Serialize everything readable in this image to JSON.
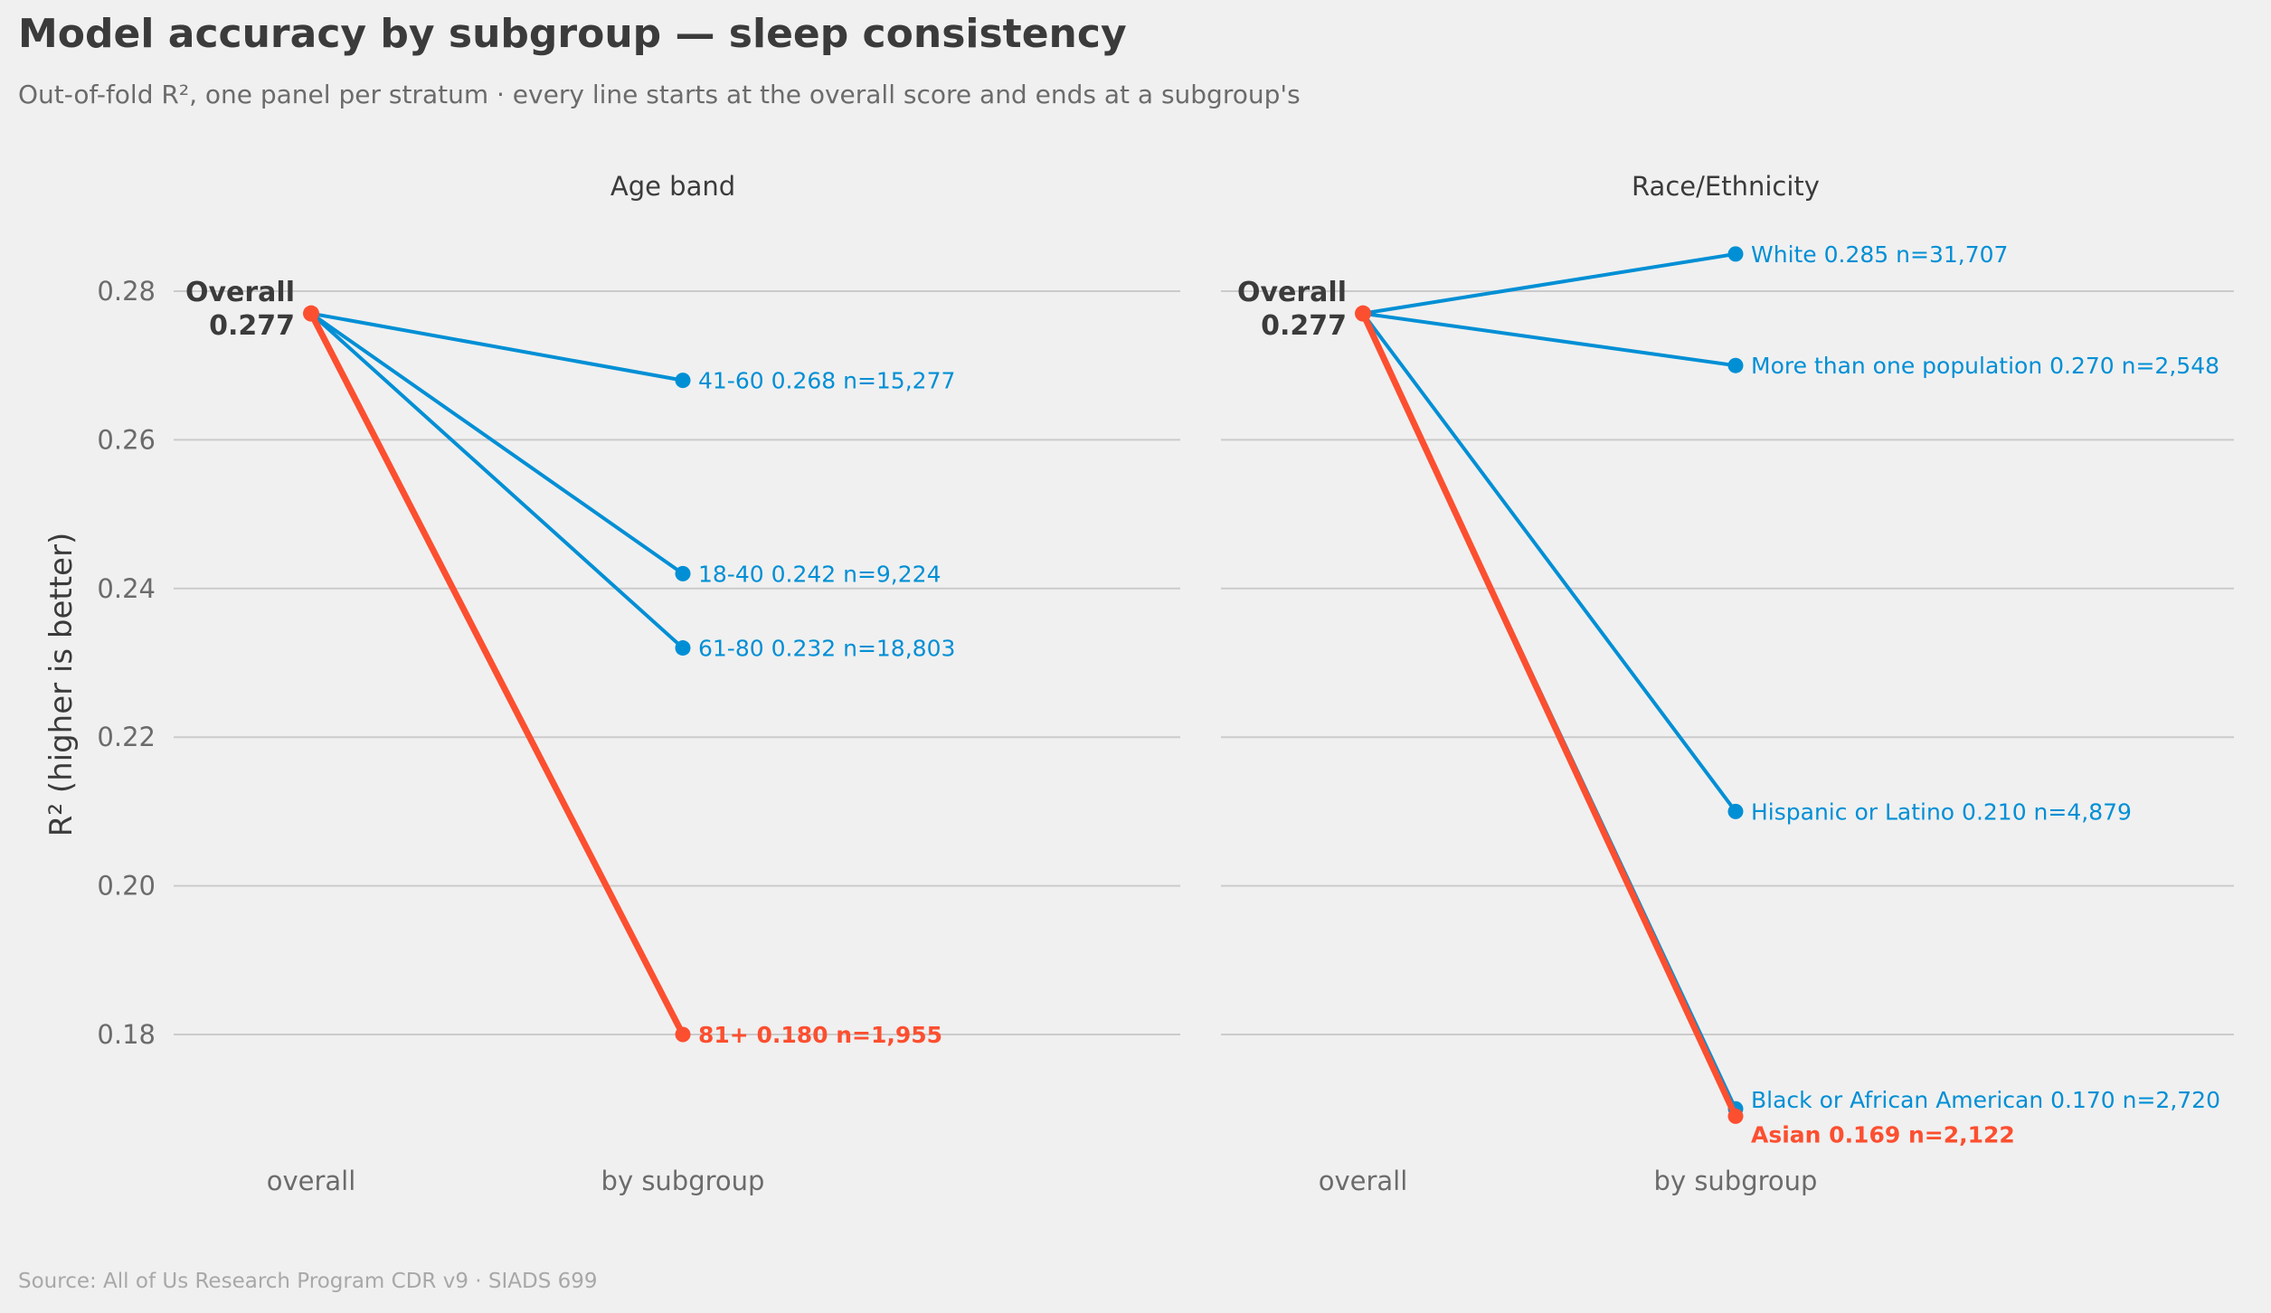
{
  "title": "Model accuracy by subgroup — sleep consistency",
  "subtitle": "Out-of-fold R², one panel per stratum · every line starts at the overall score and ends at a subgroup's",
  "source": "Source: All of Us Research Program CDR v9 · SIADS 699",
  "colors": {
    "background": "#f0f0f0",
    "grid": "#cbcbcb",
    "subgroup": "#008fd5",
    "highlight": "#fc4f30",
    "overall_text": "#3b3b3b",
    "tick_text": "#6b6b6b"
  },
  "chart_data": {
    "type": "line",
    "chart_style": "slope chart, two panels",
    "ylabel": "R²  (higher is better)",
    "ylim": [
      0.165,
      0.292
    ],
    "yticks": [
      0.18,
      0.2,
      0.22,
      0.24,
      0.26,
      0.28
    ],
    "ytick_labels": [
      "0.18",
      "0.20",
      "0.22",
      "0.24",
      "0.26",
      "0.28"
    ],
    "x_categories": [
      "overall",
      "by subgroup"
    ],
    "grid": "horizontal",
    "overall": {
      "name": "Overall",
      "value": 0.277,
      "value_label": "0.277"
    },
    "panels": [
      {
        "title": "Age band",
        "series": [
          {
            "name": "41-60",
            "value": 0.268,
            "label": "41-60  0.268  n=15,277",
            "highlight": false
          },
          {
            "name": "18-40",
            "value": 0.242,
            "label": "18-40  0.242  n=9,224",
            "highlight": false
          },
          {
            "name": "61-80",
            "value": 0.232,
            "label": "61-80  0.232  n=18,803",
            "highlight": false
          },
          {
            "name": "81+",
            "value": 0.18,
            "label": "81+  0.180  n=1,955",
            "highlight": true
          }
        ]
      },
      {
        "title": "Race/Ethnicity",
        "series": [
          {
            "name": "White",
            "value": 0.285,
            "label": "White  0.285  n=31,707",
            "highlight": false
          },
          {
            "name": "More than one population",
            "value": 0.27,
            "label": "More than one population  0.270  n=2,548",
            "highlight": false
          },
          {
            "name": "Hispanic or Latino",
            "value": 0.21,
            "label": "Hispanic or Latino  0.210  n=4,879",
            "highlight": false
          },
          {
            "name": "Black or African American",
            "value": 0.17,
            "label": "Black or African American  0.170  n=2,720",
            "highlight": false
          },
          {
            "name": "Asian",
            "value": 0.169,
            "label": "Asian  0.169  n=2,122",
            "highlight": true
          }
        ]
      }
    ]
  }
}
